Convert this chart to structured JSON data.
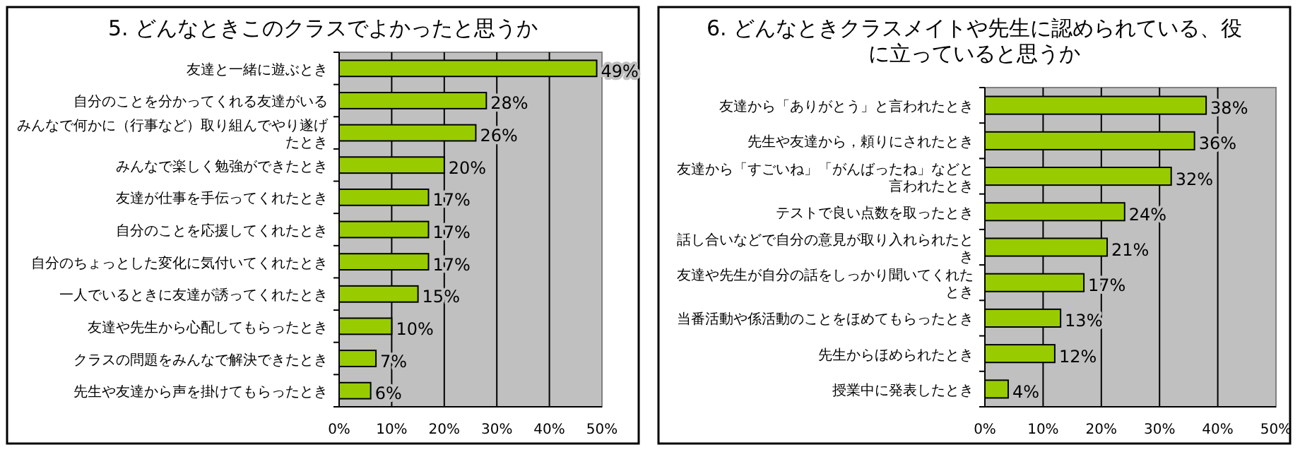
{
  "chart_data": [
    {
      "type": "bar",
      "orientation": "horizontal",
      "title": "5. どんなときこのクラスでよかったと思うか",
      "categories": [
        "友達と一緒に遊ぶとき",
        "自分のことを分かってくれる友達がいる",
        "みんなで何かに（行事など）取り組んでやり遂げたとき",
        "みんなで楽しく勉強ができたとき",
        "友達が仕事を手伝ってくれたとき",
        "自分のことを応援してくれたとき",
        "自分のちょっとした変化に気付いてくれたとき",
        "一人でいるときに友達が誘ってくれたとき",
        "友達や先生から心配してもらったとき",
        "クラスの問題をみんなで解決できたとき",
        "先生や友達から声を掛けてもらったとき"
      ],
      "values": [
        49,
        28,
        26,
        20,
        17,
        17,
        17,
        15,
        10,
        7,
        6
      ],
      "value_labels": [
        "49%",
        "28%",
        "26%",
        "20%",
        "17%",
        "17%",
        "17%",
        "15%",
        "10%",
        "7%",
        "6%"
      ],
      "color": "#99cc00",
      "xlim": [
        0,
        50
      ],
      "xticks": [
        {
          "value": 0,
          "label": "0%"
        },
        {
          "value": 10,
          "label": "10%"
        },
        {
          "value": 20,
          "label": "20%"
        },
        {
          "value": 30,
          "label": "30%"
        },
        {
          "value": 40,
          "label": "40%"
        },
        {
          "value": 50,
          "label": "50%"
        }
      ],
      "grid": "x"
    },
    {
      "type": "bar",
      "orientation": "horizontal",
      "title": "6. どんなときクラスメイトや先生に認められている、役に立っていると思うか",
      "categories": [
        "友達から「ありがとう」と言われたとき",
        "先生や友達から，頼りにされたとき",
        "友達から「すごいね」「がんばったね」などと言われたとき",
        "テストで良い点数を取ったとき",
        "話し合いなどで自分の意見が取り入れられたとき",
        "友達や先生が自分の話をしっかり聞いてくれたとき",
        "当番活動や係活動のことをほめてもらったとき",
        "先生からほめられたとき",
        "授業中に発表したとき"
      ],
      "values": [
        38,
        36,
        32,
        24,
        21,
        17,
        13,
        12,
        4
      ],
      "value_labels": [
        "38%",
        "36%",
        "32%",
        "24%",
        "21%",
        "17%",
        "13%",
        "12%",
        "4%"
      ],
      "color": "#99cc00",
      "xlim": [
        0,
        50
      ],
      "xticks": [
        {
          "value": 0,
          "label": "0%"
        },
        {
          "value": 10,
          "label": "10%"
        },
        {
          "value": 20,
          "label": "20%"
        },
        {
          "value": 30,
          "label": "30%"
        },
        {
          "value": 40,
          "label": "40%"
        },
        {
          "value": 50,
          "label": "50%"
        }
      ],
      "grid": "x"
    }
  ]
}
